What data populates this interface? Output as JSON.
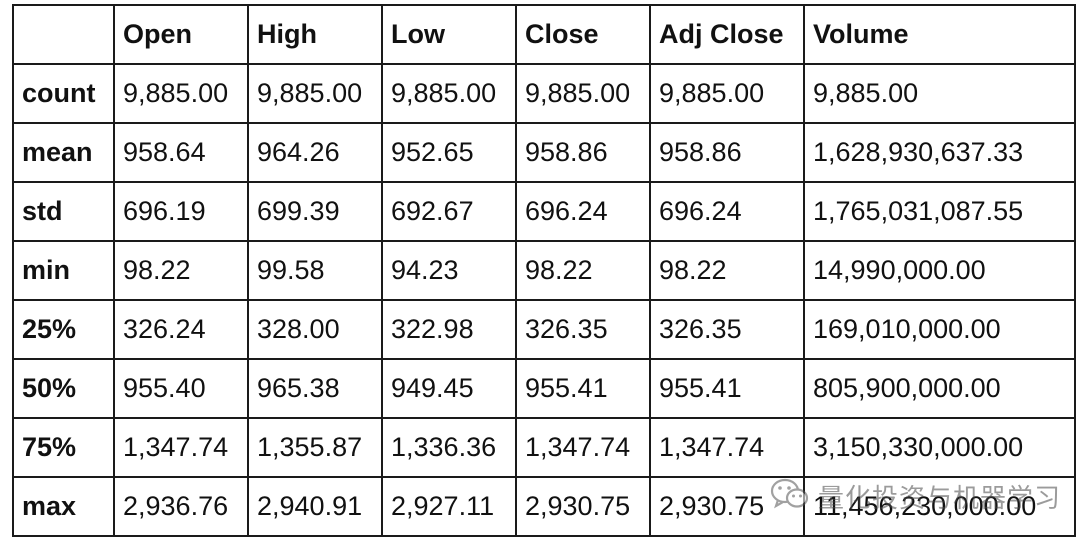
{
  "table": {
    "headers": [
      "",
      "Open",
      "High",
      "Low",
      "Close",
      "Adj Close",
      "Volume"
    ],
    "rows": [
      [
        "count",
        "9,885.00",
        "9,885.00",
        "9,885.00",
        "9,885.00",
        "9,885.00",
        "9,885.00"
      ],
      [
        "mean",
        "958.64",
        "964.26",
        "952.65",
        "958.86",
        "958.86",
        "1,628,930,637.33"
      ],
      [
        "std",
        "696.19",
        "699.39",
        "692.67",
        "696.24",
        "696.24",
        "1,765,031,087.55"
      ],
      [
        "min",
        "98.22",
        "99.58",
        "94.23",
        "98.22",
        "98.22",
        "14,990,000.00"
      ],
      [
        "25%",
        "326.24",
        "328.00",
        "322.98",
        "326.35",
        "326.35",
        "169,010,000.00"
      ],
      [
        "50%",
        "955.40",
        "965.38",
        "949.45",
        "955.41",
        "955.41",
        "805,900,000.00"
      ],
      [
        "75%",
        "1,347.74",
        "1,355.87",
        "1,336.36",
        "1,347.74",
        "1,347.74",
        "3,150,330,000.00"
      ],
      [
        "max",
        "2,936.76",
        "2,940.91",
        "2,927.11",
        "2,930.75",
        "2,930.75",
        "11,456,230,000.00"
      ]
    ]
  },
  "watermark": {
    "text": "量化投资与机器学习",
    "icon": "wechat-icon"
  }
}
